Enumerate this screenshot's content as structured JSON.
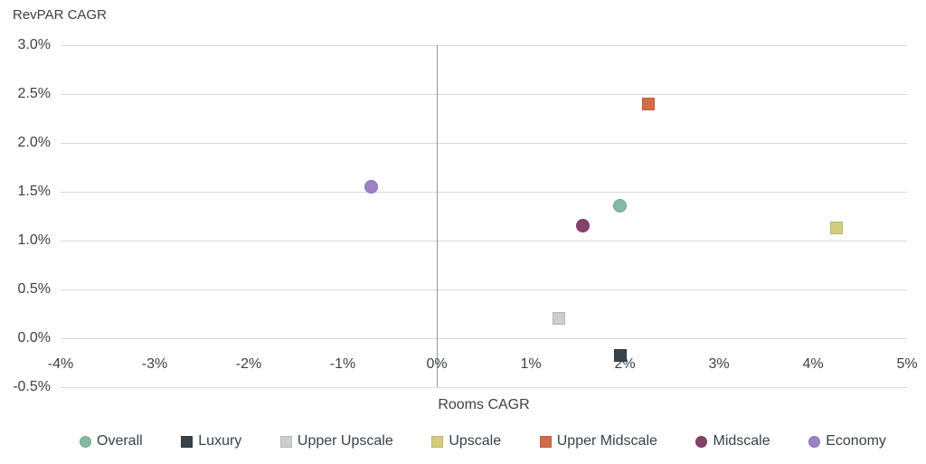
{
  "chart_data": {
    "type": "scatter",
    "title": "RevPAR CAGR",
    "xlabel": "Rooms CAGR",
    "ylabel": "RevPAR CAGR",
    "xlim": [
      -4,
      5
    ],
    "ylim": [
      -0.5,
      3.0
    ],
    "grid": "horizontal-only",
    "legend_position": "bottom",
    "x_ticks": [
      {
        "value": -4,
        "label": "-4%"
      },
      {
        "value": -3,
        "label": "-3%"
      },
      {
        "value": -2,
        "label": "-2%"
      },
      {
        "value": -1,
        "label": "-1%"
      },
      {
        "value": 0,
        "label": "0%"
      },
      {
        "value": 1,
        "label": "1%"
      },
      {
        "value": 2,
        "label": "2%"
      },
      {
        "value": 3,
        "label": "3%"
      },
      {
        "value": 4,
        "label": "4%"
      },
      {
        "value": 5,
        "label": "5%"
      }
    ],
    "y_ticks": [
      {
        "value": 3.0,
        "label": "3.0%"
      },
      {
        "value": 2.5,
        "label": "2.5%"
      },
      {
        "value": 2.0,
        "label": "2.0%"
      },
      {
        "value": 1.5,
        "label": "1.5%"
      },
      {
        "value": 1.0,
        "label": "1.0%"
      },
      {
        "value": 0.5,
        "label": "0.5%"
      },
      {
        "value": 0.0,
        "label": "0.0%"
      },
      {
        "value": -0.5,
        "label": "-0.5%"
      }
    ],
    "series": [
      {
        "name": "Overall",
        "marker": "circle",
        "color": "#85baa2",
        "x": 1.95,
        "y": 1.36
      },
      {
        "name": "Luxury",
        "marker": "square",
        "color": "#37424a",
        "x": 1.95,
        "y": -0.18
      },
      {
        "name": "Upper Upscale",
        "marker": "square",
        "color": "#c9ced2",
        "x": 1.3,
        "y": 0.2
      },
      {
        "name": "Upscale",
        "marker": "square",
        "color": "#d3cd7d",
        "x": 4.25,
        "y": 1.13
      },
      {
        "name": "Upper Midscale",
        "marker": "square",
        "color": "#d06c47",
        "x": 2.25,
        "y": 2.4
      },
      {
        "name": "Midscale",
        "marker": "circle",
        "color": "#84426b",
        "x": 1.55,
        "y": 1.15
      },
      {
        "name": "Economy",
        "marker": "circle",
        "color": "#9d82c8",
        "x": -0.7,
        "y": 1.55
      }
    ],
    "colors": {
      "gridline": "#d9d9d9",
      "zero_axis": "#8f9499",
      "text": "#3b4249",
      "legend_text": "#37424a"
    }
  }
}
